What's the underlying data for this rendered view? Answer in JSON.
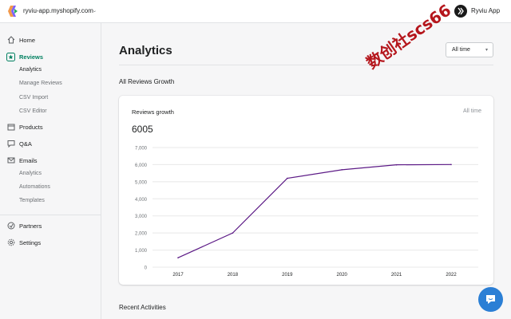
{
  "topbar": {
    "store_name": "ryviu-app.myshopify.com",
    "store_caret": "⌄",
    "app_name": "Ryviu App"
  },
  "sidebar": {
    "items": [
      {
        "label": "Home",
        "icon": "home-icon"
      },
      {
        "label": "Reviews",
        "icon": "star-icon",
        "active": true
      },
      {
        "label": "Products",
        "icon": "box-icon"
      },
      {
        "label": "Q&A",
        "icon": "chat-bubble-icon"
      },
      {
        "label": "Emails",
        "icon": "mail-icon"
      },
      {
        "label": "Partners",
        "icon": "partners-icon"
      },
      {
        "label": "Settings",
        "icon": "gear-icon"
      }
    ],
    "reviews_sub": [
      "Analytics",
      "Manage Reviews",
      "CSV Import",
      "CSV Editor"
    ],
    "emails_sub": [
      "Analytics",
      "Automations",
      "Templates"
    ]
  },
  "main": {
    "title": "Analytics",
    "range_select": "All time",
    "section_heading": "All Reviews Growth",
    "recent_heading": "Recent Activities"
  },
  "card": {
    "title": "Reviews growth",
    "range": "All time",
    "total": "6005"
  },
  "chart_data": {
    "type": "line",
    "x": [
      "2017",
      "2018",
      "2019",
      "2020",
      "2021",
      "2022"
    ],
    "series": [
      {
        "values": [
          550,
          2000,
          5200,
          5700,
          5990,
          6005
        ]
      }
    ],
    "yticks": [
      "0",
      "1,000",
      "2,000",
      "3,000",
      "4,000",
      "5,000",
      "6,000",
      "7,000"
    ],
    "ylim": [
      0,
      7000
    ],
    "grid": true,
    "line_color": "#5c1a86",
    "grid_color": "#e8e8e8"
  },
  "watermark": "数创社scs66",
  "colors": {
    "accent": "#008060",
    "chat_button": "#2b7fd5"
  }
}
